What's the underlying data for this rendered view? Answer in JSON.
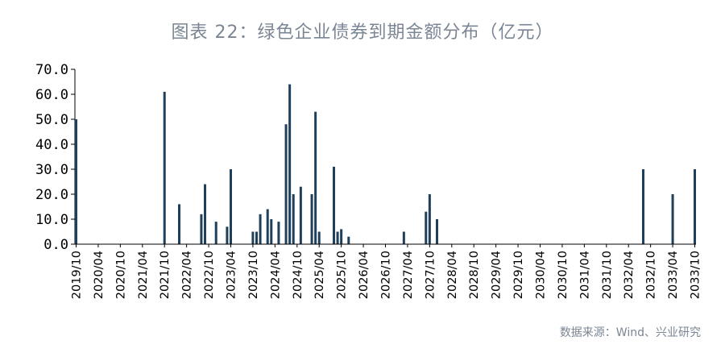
{
  "chart_data": {
    "type": "bar",
    "title": "图表 22：绿色企业债券到期金额分布（亿元）",
    "source": "数据来源：Wind、兴业研究",
    "ylim": [
      0,
      70
    ],
    "y_ticks": [
      "0.0",
      "10.0",
      "20.0",
      "30.0",
      "40.0",
      "50.0",
      "60.0",
      "70.0"
    ],
    "x_tick_labels": [
      "2019/10",
      "2020/04",
      "2020/10",
      "2021/04",
      "2021/10",
      "2022/04",
      "2022/10",
      "2023/04",
      "2023/10",
      "2024/04",
      "2024/10",
      "2025/04",
      "2025/10",
      "2026/04",
      "2026/10",
      "2027/04",
      "2027/10",
      "2028/04",
      "2028/10",
      "2029/04",
      "2029/10",
      "2030/04",
      "2030/10",
      "2031/04",
      "2031/10",
      "2032/04",
      "2032/10",
      "2033/04",
      "2033/10"
    ],
    "bar_color": "#1f3f5b",
    "series": [
      {
        "x": [
          "2019/10",
          "2021/10",
          "2022/02",
          "2022/08",
          "2022/09",
          "2022/12",
          "2023/03",
          "2023/04",
          "2023/10",
          "2023/11",
          "2023/12",
          "2024/02",
          "2024/03",
          "2024/05",
          "2024/07",
          "2024/08",
          "2024/09",
          "2024/11",
          "2025/02",
          "2025/03",
          "2025/04",
          "2025/08",
          "2025/09",
          "2025/10",
          "2025/12",
          "2027/03",
          "2027/09",
          "2027/10",
          "2027/12",
          "2032/08",
          "2033/04",
          "2033/10"
        ],
        "values": [
          50,
          61,
          16,
          12,
          24,
          9,
          7,
          30,
          5,
          5,
          12,
          14,
          10,
          9,
          48,
          64,
          20,
          23,
          20,
          53,
          5,
          31,
          5,
          6,
          3,
          5,
          13,
          20,
          10,
          30,
          20,
          30
        ]
      }
    ]
  }
}
